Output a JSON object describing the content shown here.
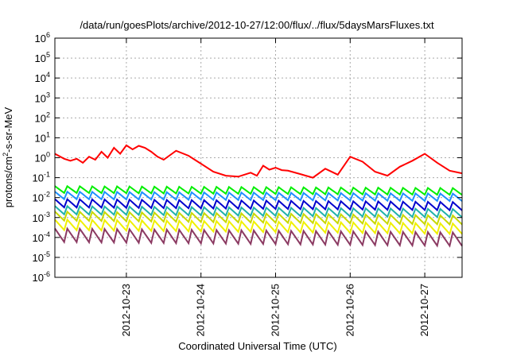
{
  "chart_data": {
    "type": "line",
    "title": "/data/run/goesPlots/archive/2012-10-27/12:00/flux/../flux/5daysMarsFluxes.txt",
    "xlabel": "Coordinated Universal Time (UTC)",
    "ylabel": {
      "prefix": "protons/cm",
      "sup": "2",
      "suffix": "-s-sr-MeV"
    },
    "yscale": "log",
    "ylim": [
      -6,
      6
    ],
    "y_ticks": [
      {
        "base": "10",
        "exp": "6"
      },
      {
        "base": "10",
        "exp": "5"
      },
      {
        "base": "10",
        "exp": "4"
      },
      {
        "base": "10",
        "exp": "3"
      },
      {
        "base": "10",
        "exp": "2"
      },
      {
        "base": "10",
        "exp": "1"
      },
      {
        "base": "10",
        "exp": "0"
      },
      {
        "base": "10",
        "exp": "-1"
      },
      {
        "base": "10",
        "exp": "-2"
      },
      {
        "base": "10",
        "exp": "-3"
      },
      {
        "base": "10",
        "exp": "-4"
      },
      {
        "base": "10",
        "exp": "-5"
      },
      {
        "base": "10",
        "exp": "-6"
      }
    ],
    "xlim": [
      "2012-10-22T01:00",
      "2012-10-27T12:00"
    ],
    "x_ticks": [
      "2012-10-23",
      "2012-10-24",
      "2012-10-25",
      "2012-10-26",
      "2012-10-27"
    ],
    "grid": true,
    "series": [
      {
        "color": "#ff0000",
        "x": [
          "2012-10-22T01:00",
          "2012-10-22T04:00",
          "2012-10-22T06:00",
          "2012-10-22T08:00",
          "2012-10-22T10:00",
          "2012-10-22T12:00",
          "2012-10-22T14:00",
          "2012-10-22T16:00",
          "2012-10-22T18:00",
          "2012-10-22T20:00",
          "2012-10-22T22:00",
          "2012-10-23T00:00",
          "2012-10-23T02:00",
          "2012-10-23T04:00",
          "2012-10-23T06:00",
          "2012-10-23T08:00",
          "2012-10-23T10:00",
          "2012-10-23T12:00",
          "2012-10-23T16:00",
          "2012-10-23T20:00",
          "2012-10-24T00:00",
          "2012-10-24T04:00",
          "2012-10-24T08:00",
          "2012-10-24T12:00",
          "2012-10-24T16:00",
          "2012-10-24T18:00",
          "2012-10-24T20:00",
          "2012-10-24T22:00",
          "2012-10-25T00:00",
          "2012-10-25T02:00",
          "2012-10-25T04:00",
          "2012-10-25T08:00",
          "2012-10-25T12:00",
          "2012-10-25T16:00",
          "2012-10-25T20:00",
          "2012-10-26T00:00",
          "2012-10-26T04:00",
          "2012-10-26T08:00",
          "2012-10-26T12:00",
          "2012-10-26T16:00",
          "2012-10-26T20:00",
          "2012-10-27T00:00",
          "2012-10-27T04:00",
          "2012-10-27T08:00",
          "2012-10-27T12:00"
        ],
        "y_log10": [
          0.2,
          -0.05,
          -0.15,
          -0.05,
          -0.25,
          0.05,
          -0.1,
          0.3,
          0.0,
          0.5,
          0.2,
          0.62,
          0.42,
          0.6,
          0.5,
          0.3,
          0.05,
          -0.1,
          0.35,
          0.1,
          -0.3,
          -0.7,
          -0.9,
          -0.95,
          -0.75,
          -0.9,
          -0.4,
          -0.6,
          -0.5,
          -0.62,
          -0.65,
          -0.82,
          -1.0,
          -0.55,
          -0.85,
          0.05,
          -0.2,
          -0.7,
          -0.9,
          -0.45,
          -0.15,
          0.2,
          -0.25,
          -0.65,
          -0.78
        ]
      },
      {
        "color": "#00ee00",
        "base": -1.65,
        "trend": -0.1,
        "amp": 0.45
      },
      {
        "color": "#1e90ff",
        "base": -1.95,
        "trend": -0.1,
        "amp": 0.5
      },
      {
        "color": "#0000cd",
        "base": -2.35,
        "trend": -0.15,
        "amp": 0.55
      },
      {
        "color": "#20b2aa",
        "base": -2.7,
        "trend": -0.15,
        "amp": 0.55
      },
      {
        "color": "#c8d800",
        "base": -3.0,
        "trend": -0.2,
        "amp": 0.6
      },
      {
        "color": "#f0f000",
        "base": -3.45,
        "trend": -0.2,
        "amp": 0.7
      },
      {
        "color": "#8b3a62",
        "base": -4.0,
        "trend": -0.2,
        "amp": 0.9
      }
    ]
  }
}
